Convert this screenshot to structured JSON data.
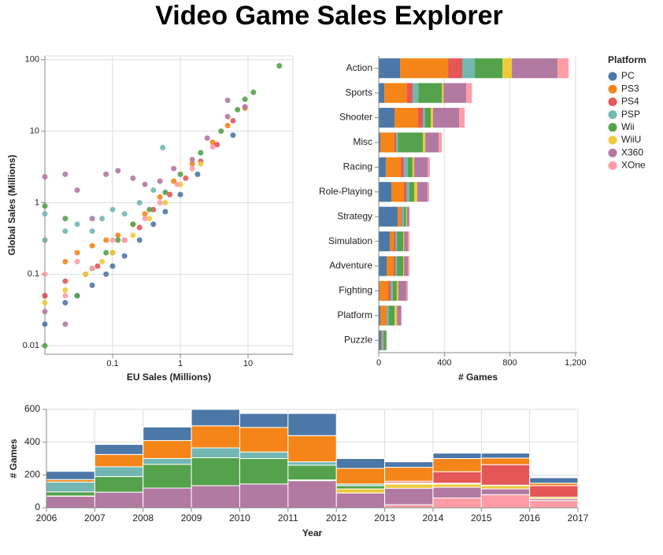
{
  "title": "Video Game Sales Explorer",
  "chart_data": [
    {
      "type": "scatter",
      "x_label": "EU Sales (Millions)",
      "y_label": "Global Sales (Millions)",
      "xscale": "log",
      "yscale": "log",
      "grid": true,
      "xlim": [
        0.01,
        46
      ],
      "ylim": [
        0.0076,
        113
      ],
      "xticks": [
        0.1,
        1,
        10
      ],
      "yticks": [
        0.01,
        0.1,
        1,
        10,
        100
      ],
      "series": [
        {
          "x": [
            0.01,
            0.01,
            0.02,
            0.03,
            0.05,
            0.08,
            0.1,
            0.15,
            0.25,
            0.4,
            0.6,
            1,
            1.8,
            6
          ],
          "values": [
            0.02,
            0.05,
            0.04,
            0.05,
            0.07,
            0.1,
            0.13,
            0.18,
            0.3,
            0.5,
            0.75,
            1.3,
            2.5,
            8.8
          ]
        },
        {
          "x": [
            0.01,
            0.02,
            0.03,
            0.05,
            0.08,
            0.12,
            0.2,
            0.3,
            0.5,
            0.8,
            1.5,
            3,
            5,
            9
          ],
          "values": [
            0.3,
            0.15,
            0.2,
            0.25,
            0.3,
            0.35,
            0.5,
            0.7,
            1.2,
            2,
            3.5,
            7,
            12,
            21
          ]
        },
        {
          "x": [
            0.01,
            0.02,
            0.04,
            0.06,
            0.1,
            0.15,
            0.25,
            0.4,
            0.7,
            1.2,
            2,
            3.5,
            6
          ],
          "values": [
            0.05,
            0.08,
            0.1,
            0.13,
            0.2,
            0.3,
            0.45,
            0.8,
            1.3,
            2.2,
            3.8,
            6.5,
            14
          ]
        },
        {
          "x": [
            0.01,
            0.01,
            0.02,
            0.03,
            0.05,
            0.07,
            0.1,
            0.15,
            0.25,
            0.4,
            0.55
          ],
          "values": [
            0.3,
            0.7,
            0.4,
            0.5,
            0.4,
            0.6,
            0.8,
            0.7,
            1,
            1.5,
            5.9
          ]
        },
        {
          "x": [
            0.01,
            0.01,
            0.02,
            0.03,
            0.05,
            0.08,
            0.12,
            0.2,
            0.35,
            0.6,
            1,
            2,
            4,
            7,
            9,
            12,
            29
          ],
          "values": [
            0.01,
            0.9,
            0.6,
            0.05,
            0.12,
            0.2,
            0.3,
            0.5,
            0.8,
            1.4,
            2.5,
            5,
            10,
            20,
            28,
            35,
            82
          ]
        },
        {
          "x": [
            0.01,
            0.02,
            0.04,
            0.07,
            0.1,
            0.2,
            0.35,
            0.6,
            1,
            2
          ],
          "values": [
            0.04,
            0.06,
            0.1,
            0.15,
            0.2,
            0.35,
            0.6,
            1,
            1.8,
            3.5
          ]
        },
        {
          "x": [
            0.01,
            0.01,
            0.02,
            0.02,
            0.03,
            0.05,
            0.08,
            0.12,
            0.2,
            0.3,
            0.5,
            0.8,
            1.5,
            2.5,
            5,
            9,
            5
          ],
          "values": [
            2.3,
            0.03,
            2.5,
            0.02,
            1.5,
            0.6,
            2.5,
            2.8,
            2.2,
            1.8,
            2,
            3,
            4,
            8,
            16,
            22,
            27
          ]
        },
        {
          "x": [
            0.01,
            0.02,
            0.03,
            0.05,
            0.1,
            0.15,
            0.3,
            0.5,
            0.9,
            1.5,
            3
          ],
          "values": [
            0.1,
            0.05,
            0.15,
            0.12,
            0.3,
            0.3,
            0.6,
            1,
            1.8,
            3,
            6
          ]
        }
      ]
    },
    {
      "type": "bar",
      "orientation": "horizontal",
      "stacked": true,
      "x_label": "# Games",
      "legend_title": "Platform",
      "legend": "right",
      "grid": true,
      "categories": [
        "Action",
        "Sports",
        "Shooter",
        "Misc",
        "Racing",
        "Role-Playing",
        "Strategy",
        "Simulation",
        "Adventure",
        "Fighting",
        "Platform",
        "Puzzle"
      ],
      "xlim": [
        0,
        1210
      ],
      "xticks": [
        0,
        400,
        800,
        {
          "value": 1200,
          "label": "1,200"
        }
      ],
      "series": [
        {
          "name": "PC",
          "color": "#4c78a8",
          "values": [
            130,
            34,
            96,
            10,
            43,
            77,
            115,
            67,
            48,
            5,
            10,
            14
          ]
        },
        {
          "name": "PS3",
          "color": "#f58518",
          "values": [
            293,
            139,
            144,
            86,
            91,
            77,
            19,
            24,
            43,
            53,
            34,
            5
          ]
        },
        {
          "name": "PS4",
          "color": "#e45756",
          "values": [
            86,
            34,
            29,
            10,
            19,
            14,
            5,
            10,
            10,
            14,
            5,
            2
          ]
        },
        {
          "name": "PSP",
          "color": "#72b7b2",
          "values": [
            77,
            34,
            14,
            10,
            24,
            19,
            14,
            10,
            10,
            14,
            10,
            10
          ]
        },
        {
          "name": "Wii",
          "color": "#54a24b",
          "values": [
            168,
            144,
            34,
            154,
            29,
            29,
            14,
            38,
            38,
            24,
            38,
            14
          ]
        },
        {
          "name": "WiiU",
          "color": "#eeca3b",
          "values": [
            58,
            10,
            14,
            14,
            10,
            19,
            5,
            5,
            5,
            10,
            14,
            1
          ]
        },
        {
          "name": "X360",
          "color": "#b279a2",
          "values": [
            279,
            139,
            159,
            82,
            82,
            62,
            14,
            24,
            24,
            48,
            24,
            3
          ]
        },
        {
          "name": "XOne",
          "color": "#ff9da6",
          "values": [
            67,
            34,
            34,
            19,
            14,
            10,
            2,
            10,
            10,
            10,
            5,
            0
          ]
        }
      ]
    },
    {
      "type": "histogram",
      "stacked": true,
      "stack_order": "reverse",
      "x_label": "Year",
      "y_label": "# Games",
      "grid": true,
      "bins": [
        2006,
        2007,
        2008,
        2009,
        2010,
        2011,
        2012,
        2013,
        2014,
        2015,
        2016,
        2017
      ],
      "xlim": [
        2006,
        2017
      ],
      "xticks": [
        2006,
        2007,
        2008,
        2009,
        2010,
        2011,
        2012,
        2013,
        2014,
        2015,
        2016,
        2017
      ],
      "ylim": [
        0,
        600
      ],
      "yticks": [
        0,
        200,
        400,
        600
      ],
      "series": [
        {
          "values": [
            50,
            61,
            82,
            100,
            85,
            135,
            60,
            33,
            33,
            30,
            33
          ]
        },
        {
          "values": [
            15,
            75,
            110,
            135,
            150,
            160,
            95,
            85,
            80,
            40,
            15
          ]
        },
        {
          "values": [
            0,
            0,
            0,
            0,
            0,
            0,
            0,
            10,
            70,
            125,
            70
          ]
        },
        {
          "values": [
            60,
            60,
            35,
            60,
            40,
            20,
            10,
            3,
            0,
            0,
            0
          ]
        },
        {
          "values": [
            25,
            95,
            145,
            170,
            155,
            90,
            20,
            5,
            5,
            3,
            0
          ]
        },
        {
          "values": [
            2,
            0,
            0,
            0,
            0,
            5,
            25,
            25,
            20,
            20,
            10
          ]
        },
        {
          "values": [
            70,
            95,
            120,
            135,
            145,
            165,
            90,
            100,
            65,
            35,
            10
          ]
        },
        {
          "values": [
            0,
            0,
            0,
            0,
            0,
            0,
            0,
            19,
            60,
            80,
            45
          ]
        }
      ]
    }
  ]
}
